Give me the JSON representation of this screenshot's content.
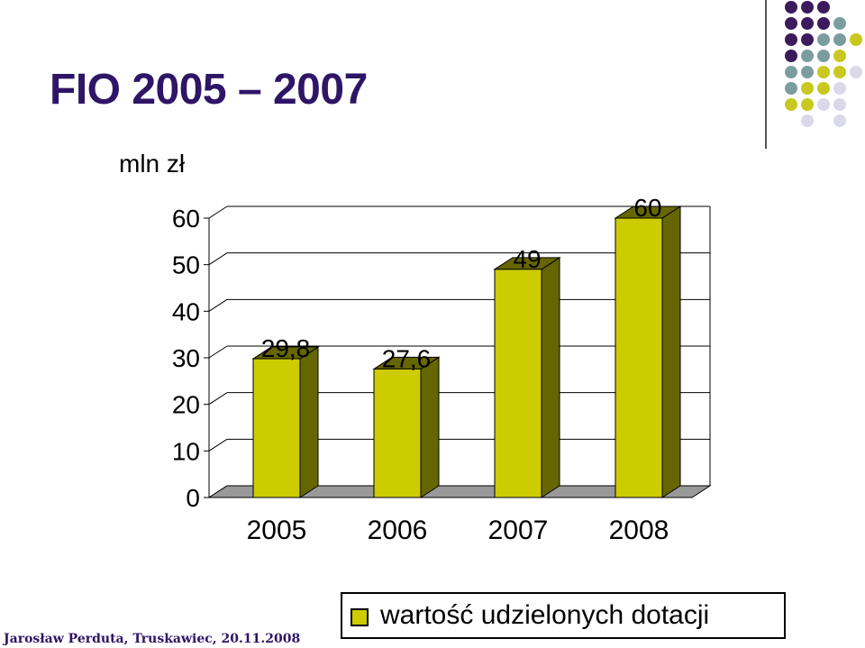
{
  "slide": {
    "title": "FIO 2005 – 2007",
    "footer": "Jarosław Perduta, Truskawiec, 20.11.2008"
  },
  "colors": {
    "title": "#2e1566",
    "bar_front": "#cccc00",
    "bar_side": "#666600",
    "floor": "#999999",
    "dot_purple": "#3d1a5c",
    "dot_teal": "#7a9e9f",
    "dot_yellow": "#c8c81e",
    "dot_lavender": "#d9d9ea"
  },
  "chart_data": {
    "type": "bar",
    "title": "",
    "unit_label": "mln zł",
    "categories": [
      "2005",
      "2006",
      "2007",
      "2008"
    ],
    "series": [
      {
        "name": "wartość udzielonych dotacji",
        "values": [
          29.8,
          27.6,
          49,
          60
        ],
        "labels": [
          "29,8",
          "27,6",
          "49",
          "60"
        ]
      }
    ],
    "ylim": [
      0,
      60
    ],
    "yticks": [
      "0",
      "10",
      "20",
      "30",
      "40",
      "50",
      "60"
    ],
    "grid": true,
    "legend_position": "bottom-right",
    "style": "3d-column"
  }
}
